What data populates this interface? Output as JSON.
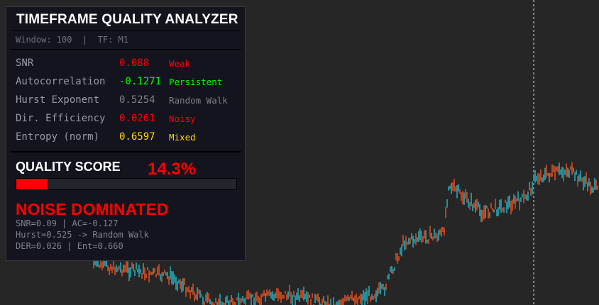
{
  "panel": {
    "title": "TIMEFRAME QUALITY ANALYZER",
    "subtitle": "Window: 100  |  TF: M1",
    "metrics": [
      {
        "label": "SNR",
        "value": "0.088",
        "status": "Weak",
        "color": "#ff0000"
      },
      {
        "label": "Autocorrelation",
        "value": "-0.1271",
        "status": "Persistent",
        "color": "#00ff00"
      },
      {
        "label": "Hurst Exponent",
        "value": "0.5254",
        "status": "Random Walk",
        "color": "#808080"
      },
      {
        "label": "Dir. Efficiency",
        "value": "0.0261",
        "status": "Noisy",
        "color": "#ff0000"
      },
      {
        "label": "Entropy (norm)",
        "value": "0.6597",
        "status": "Mixed",
        "color": "#ffd700"
      }
    ],
    "quality_label": "QUALITY SCORE",
    "quality_value": "14.3%",
    "quality_fraction": 0.143,
    "verdict": "NOISE DOMINATED",
    "summary": [
      "SNR=0.09 | AC=-0.127",
      "Hurst=0.525 -> Random Walk",
      "DER=0.026 | Ent=0.660"
    ]
  },
  "colors": {
    "background": "#262626",
    "bull": "#26c6da",
    "bear": "#ff5722",
    "bad": "#ff0000"
  }
}
